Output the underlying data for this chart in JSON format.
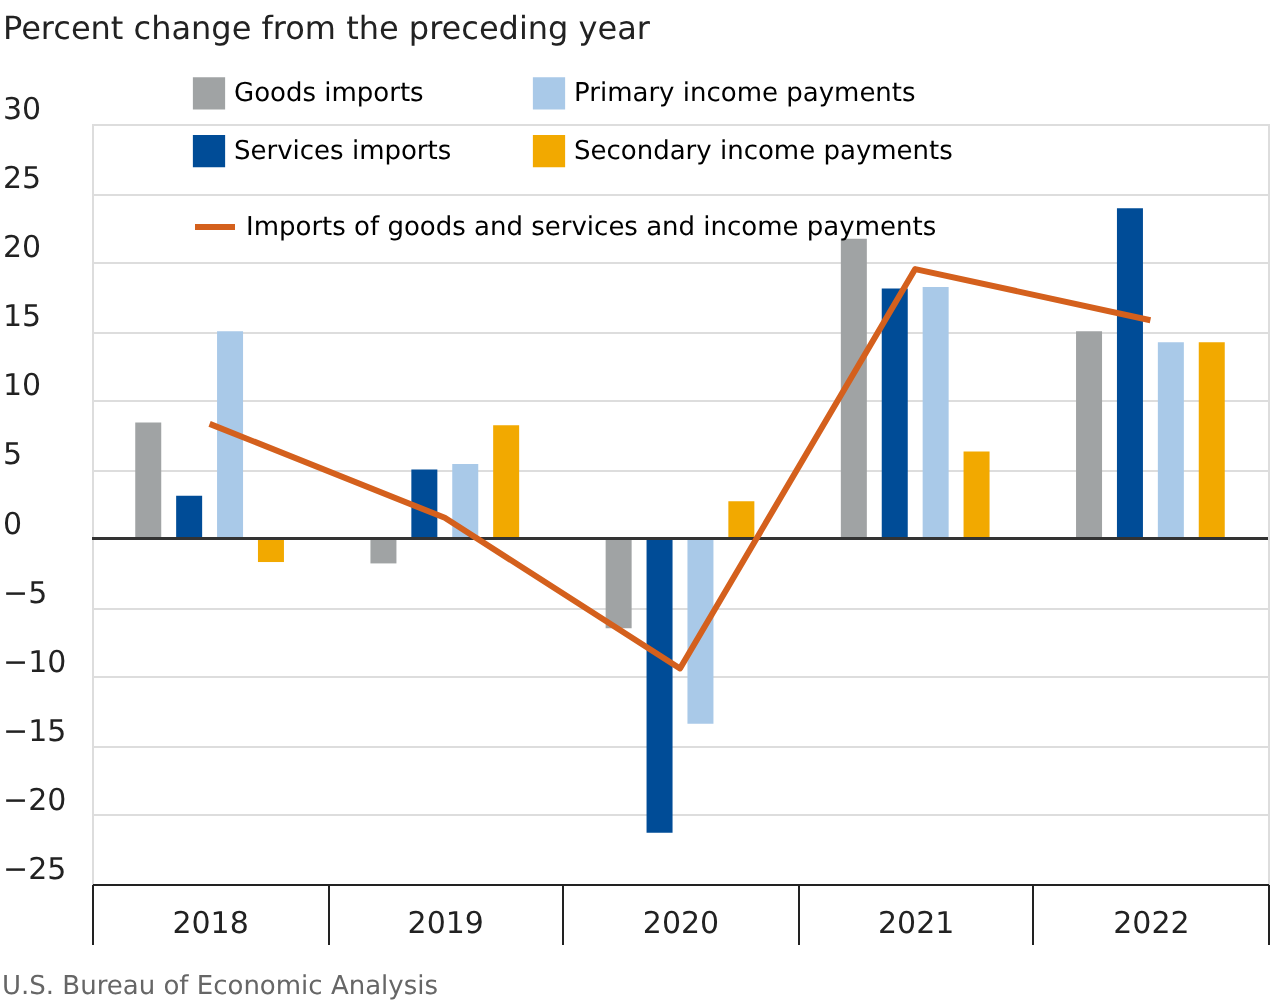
{
  "chart_data": {
    "type": "bar",
    "ylabel": "Percent change from the preceding year",
    "categories": [
      "2018",
      "2019",
      "2020",
      "2021",
      "2022"
    ],
    "series": [
      {
        "name": "Goods imports",
        "color": "#a0a3a4",
        "values": [
          8.4,
          -1.8,
          -6.5,
          21.7,
          15.0
        ]
      },
      {
        "name": "Services imports",
        "color": "#004c97",
        "values": [
          3.1,
          5.0,
          -21.3,
          18.1,
          23.9
        ]
      },
      {
        "name": "Primary income payments",
        "color": "#a9c9e8",
        "values": [
          15.0,
          5.4,
          -13.4,
          18.2,
          14.2
        ]
      },
      {
        "name": "Secondary income payments",
        "color": "#f2a900",
        "values": [
          -1.7,
          8.2,
          2.7,
          6.3,
          14.2
        ]
      },
      {
        "name": "Imports of goods and services and income payments",
        "color": "#d4601d",
        "type": "line",
        "values": [
          8.3,
          1.5,
          -9.4,
          19.5,
          15.8
        ]
      }
    ],
    "ylim": [
      -25,
      30
    ],
    "yticks": [
      -25,
      -20,
      -15,
      -10,
      -5,
      0,
      5,
      10,
      15,
      20,
      25,
      30
    ],
    "grid": "y",
    "legend": "top",
    "marker": "none",
    "line_style": "solid",
    "ref_lines": [
      {
        "axis": "y",
        "value": 0,
        "color": "#333333"
      }
    ],
    "annotations": [
      "U.S. Bureau of Economic Analysis"
    ]
  }
}
